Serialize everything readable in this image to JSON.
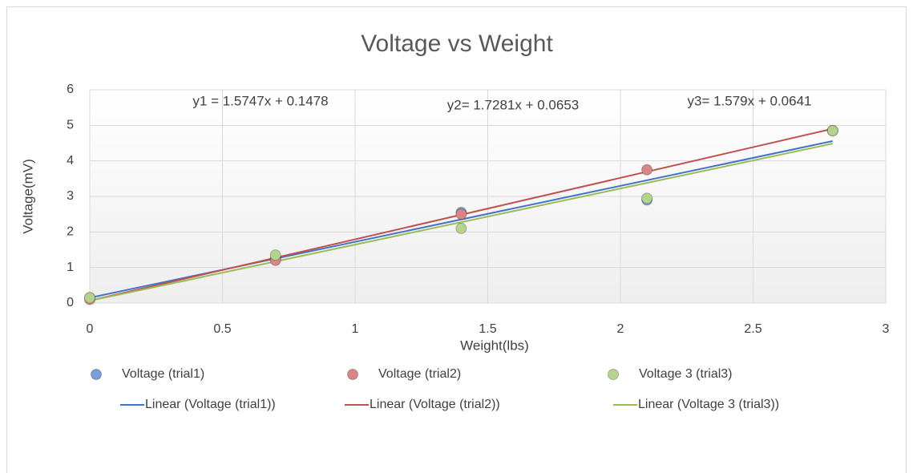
{
  "chart_data": {
    "type": "scatter",
    "title": "Voltage vs Weight",
    "x_label": "Weight(lbs)",
    "y_label": "Voltage(mV)",
    "xlim": [
      0,
      3
    ],
    "xticks": [
      0,
      0.5,
      1,
      1.5,
      2,
      2.5,
      3
    ],
    "ylim": [
      0,
      6
    ],
    "yticks": [
      0,
      1,
      2,
      3,
      4,
      5,
      6
    ],
    "grid": true,
    "series": [
      {
        "name": "Voltage (trial1)",
        "type": "scatter",
        "color": "#7a9fd8",
        "x": [
          0,
          0.7,
          1.4,
          2.1,
          2.8
        ],
        "values": [
          0.15,
          1.25,
          2.55,
          2.9,
          4.85
        ]
      },
      {
        "name": "Voltage (trial2)",
        "type": "scatter",
        "color": "#d98585",
        "x": [
          0,
          0.7,
          1.4,
          2.1,
          2.8
        ],
        "values": [
          0.1,
          1.2,
          2.5,
          3.75,
          4.85
        ]
      },
      {
        "name": "Voltage 3 (trial3)",
        "type": "scatter",
        "color": "#b4d48c",
        "x": [
          0,
          0.7,
          1.4,
          2.1,
          2.8
        ],
        "values": [
          0.15,
          1.35,
          2.1,
          2.95,
          4.85
        ]
      },
      {
        "name": "Linear (Voltage (trial1))",
        "type": "line",
        "color": "#4472c4",
        "x": [
          0,
          2.8
        ],
        "values": [
          0.1478,
          4.557
        ]
      },
      {
        "name": "Linear (Voltage (trial2))",
        "type": "line",
        "color": "#c0504d",
        "x": [
          0,
          2.8
        ],
        "values": [
          0.0653,
          4.904
        ]
      },
      {
        "name": "Linear (Voltage 3 (trial3))",
        "type": "line",
        "color": "#9bbb59",
        "x": [
          0,
          2.8
        ],
        "values": [
          0.0641,
          4.485
        ]
      }
    ],
    "annotations": [
      "y1 = 1.5747x + 0.1478",
      "y2= 1.7281x + 0.0653",
      "y3= 1.579x + 0.0641"
    ]
  }
}
